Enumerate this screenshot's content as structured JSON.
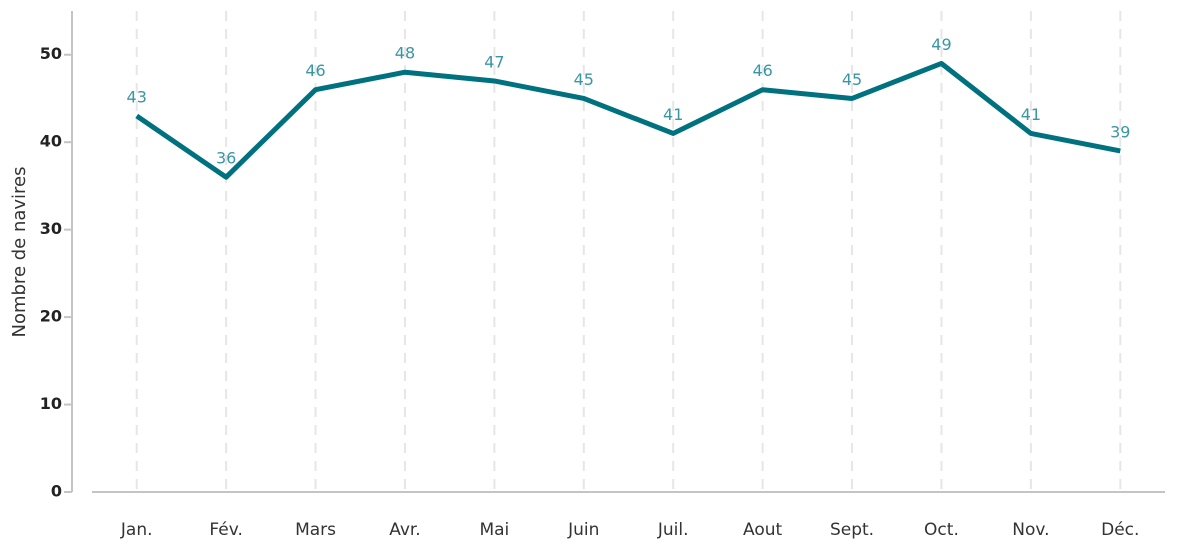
{
  "chart_data": {
    "type": "line",
    "y_label": "Nombre de navires",
    "categories": [
      "Jan.",
      "Fév.",
      "Mars",
      "Avr.",
      "Mai",
      "Juin",
      "Juil.",
      "Aout",
      "Sept.",
      "Oct.",
      "Nov.",
      "Déc."
    ],
    "series": [
      {
        "color": "#00717f",
        "label_color": "#3a96a3",
        "values": [
          43,
          36,
          46,
          48,
          47,
          45,
          41,
          46,
          45,
          49,
          41,
          39
        ]
      }
    ],
    "ylim": [
      0,
      55
    ],
    "yticks": [
      0,
      10,
      20,
      30,
      40,
      50
    ],
    "grid": "x"
  }
}
